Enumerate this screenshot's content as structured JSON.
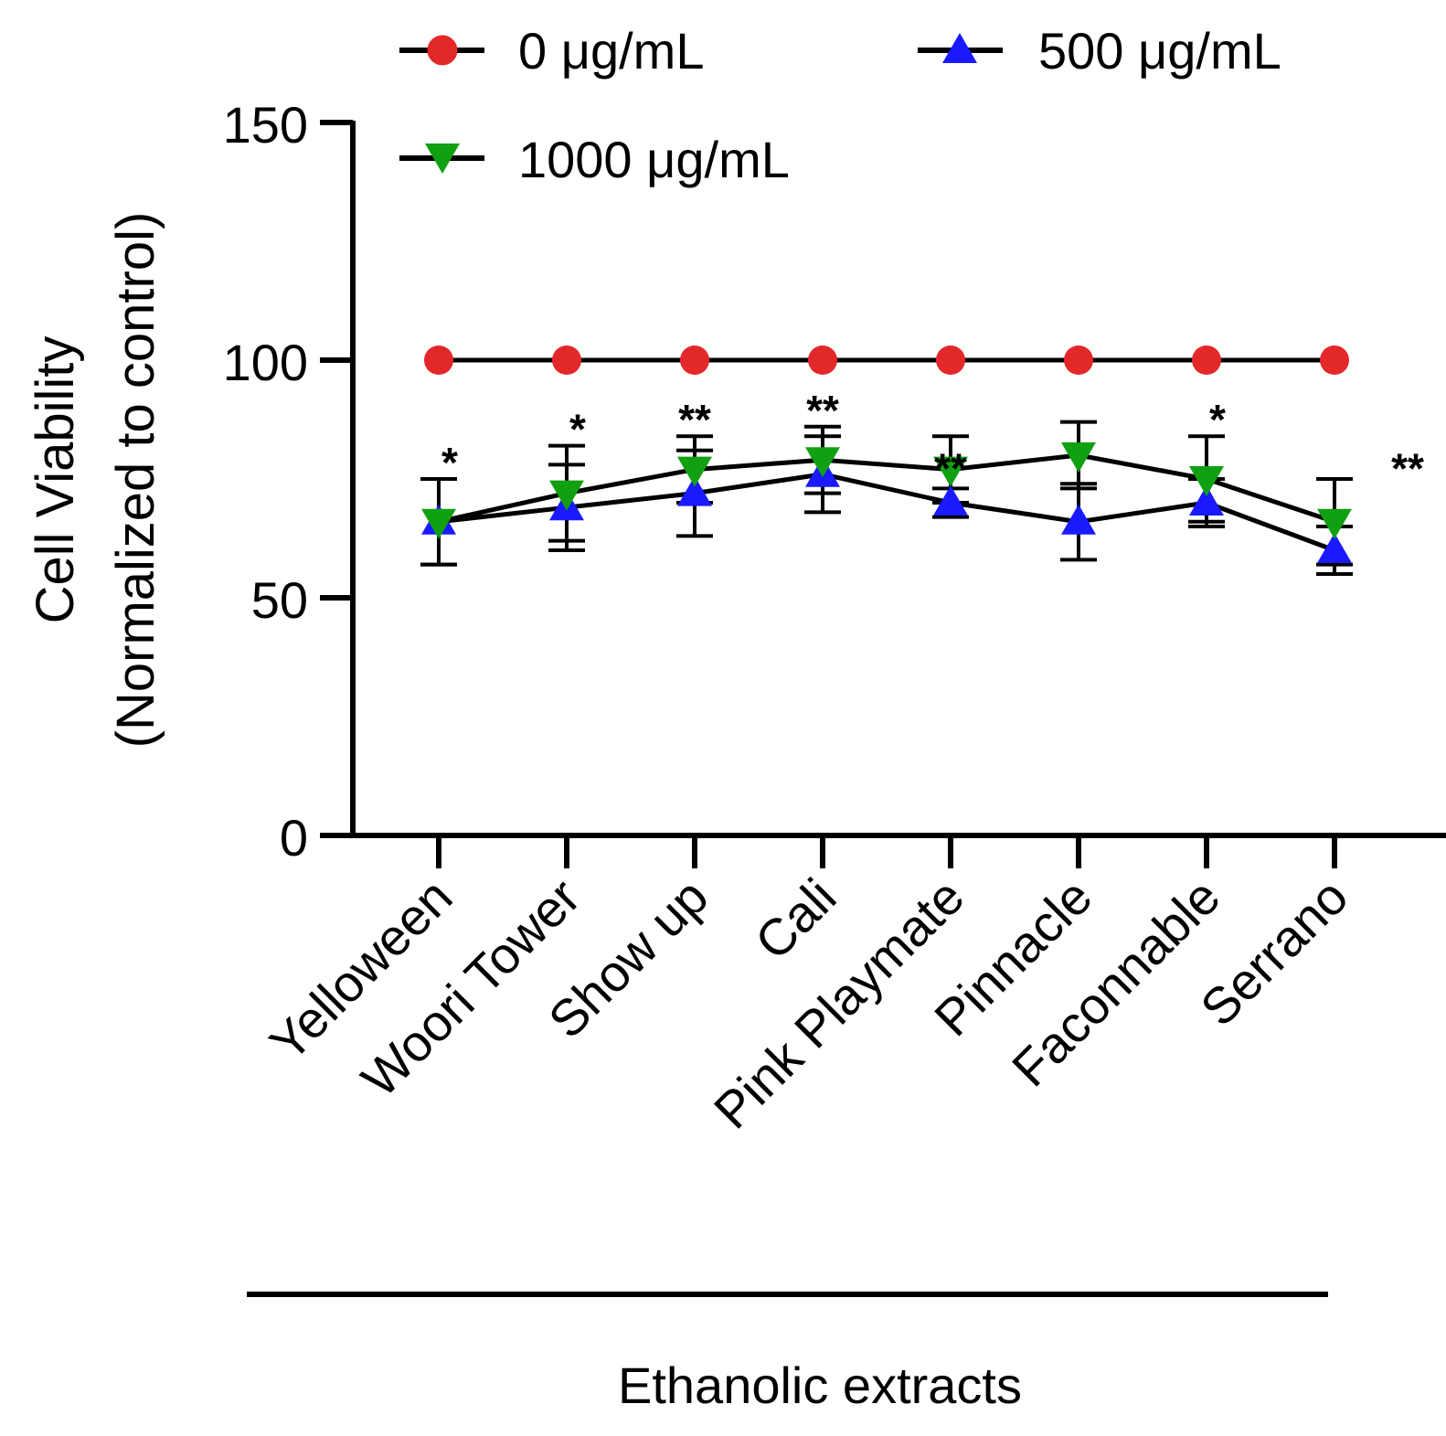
{
  "chart_data": {
    "type": "line",
    "ylabel_line1": "Cell Viability",
    "ylabel_line2": "(Normalized to control)",
    "x_group_title": "Ethanolic extracts",
    "ylim": [
      0,
      150
    ],
    "yticks": [
      0,
      50,
      100,
      150
    ],
    "categories": [
      "Yelloween",
      "Woori Tower",
      "Show up",
      "Cali",
      "Pink Playmate",
      "Pinnacle",
      "Faconnable",
      "Serrano"
    ],
    "series": [
      {
        "name": "0 μg/mL",
        "marker": "circle",
        "color": "#e3282a",
        "values": [
          100,
          100,
          100,
          100,
          100,
          100,
          100,
          100
        ],
        "errors": [
          0,
          0,
          0,
          0,
          0,
          0,
          0,
          0
        ]
      },
      {
        "name": "500 μg/mL",
        "marker": "triangle-up",
        "color": "#1a1aff",
        "values": [
          66,
          69,
          72,
          76,
          70,
          66,
          70,
          60
        ],
        "errors": [
          9,
          9,
          9,
          8,
          3,
          8,
          5,
          5
        ]
      },
      {
        "name": "1000 μg/mL",
        "marker": "triangle-down",
        "color": "#11a011",
        "values": [
          66,
          72,
          77,
          79,
          77,
          80,
          75,
          66
        ],
        "errors": [
          9,
          10,
          7,
          7,
          7,
          7,
          9,
          9
        ]
      }
    ],
    "significance": [
      "*",
      "*",
      "**",
      "**",
      "**",
      "",
      "*",
      "**"
    ],
    "legend_position": "top"
  }
}
